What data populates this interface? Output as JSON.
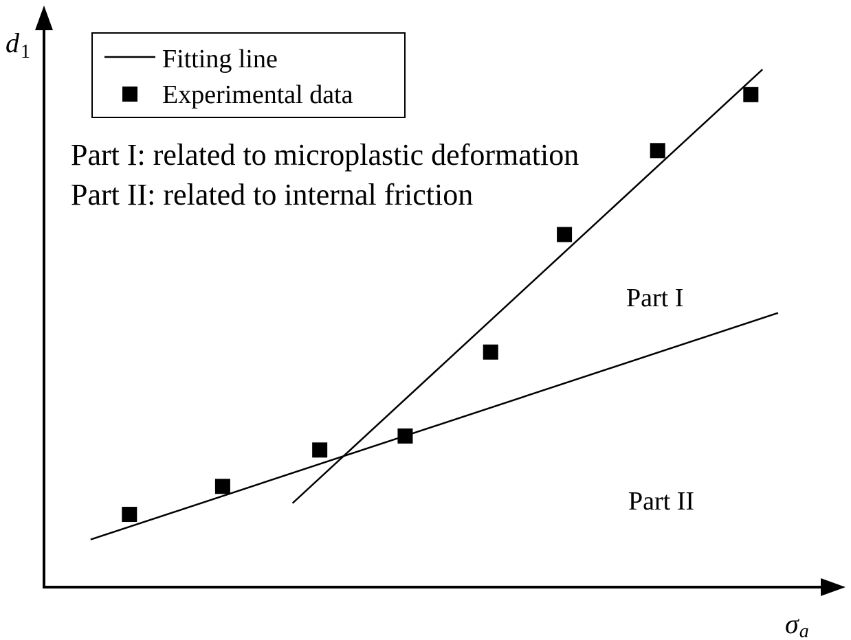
{
  "chart_data": {
    "type": "scatter",
    "x_label": "σ",
    "x_label_subscript": "a",
    "y_label": "d",
    "y_label_subscript": "1",
    "axis_ticks": false,
    "grid": false,
    "legend": {
      "placement": "top-left",
      "entries": [
        {
          "label": "Fitting line",
          "marker": "line"
        },
        {
          "label": "Experimental data",
          "marker": "square"
        }
      ]
    },
    "annotations": {
      "line1": "Part I: related to microplastic deformation",
      "line2": "Part II: related to internal friction",
      "region_upper": "Part I",
      "region_lower": "Part II"
    },
    "xlim": [
      0,
      100
    ],
    "ylim": [
      0,
      100
    ],
    "series": [
      {
        "name": "Experimental data",
        "type": "scatter",
        "marker": "square",
        "color": "#000000",
        "points": [
          {
            "x": 11,
            "y": 13
          },
          {
            "x": 23,
            "y": 18
          },
          {
            "x": 35.5,
            "y": 24.5
          },
          {
            "x": 46.5,
            "y": 27
          },
          {
            "x": 57.5,
            "y": 42
          },
          {
            "x": 67,
            "y": 63
          },
          {
            "x": 79,
            "y": 78
          },
          {
            "x": 91,
            "y": 88
          }
        ]
      },
      {
        "name": "Fitting line",
        "type": "line",
        "segment": "Part II",
        "color": "#000000",
        "points": [
          {
            "x": 6,
            "y": 8.5
          },
          {
            "x": 94.5,
            "y": 49
          }
        ]
      },
      {
        "name": "Fitting line",
        "type": "line",
        "segment": "Part I",
        "color": "#000000",
        "points": [
          {
            "x": 32,
            "y": 15
          },
          {
            "x": 92.5,
            "y": 92.5
          }
        ]
      }
    ]
  },
  "colors": {
    "ink": "#000000",
    "background": "#ffffff"
  }
}
